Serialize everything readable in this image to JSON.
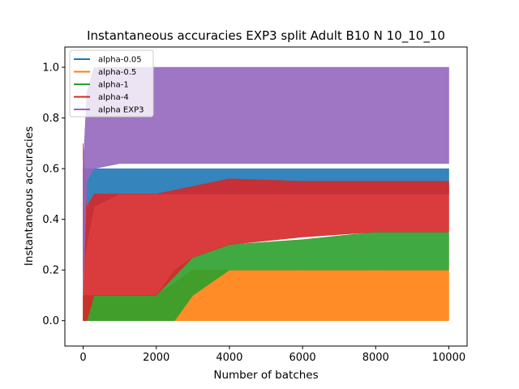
{
  "chart_data": {
    "type": "line",
    "title": "Instantaneous accuracies EXP3 split Adult B10 N 10_10_10",
    "xlabel": "Number of batches",
    "ylabel": "Instantaneous accuracies",
    "xlim": [
      -500,
      10500
    ],
    "ylim": [
      -0.1,
      1.08
    ],
    "xticks": [
      0,
      2000,
      4000,
      6000,
      8000,
      10000
    ],
    "xtick_labels": [
      "0",
      "2000",
      "4000",
      "6000",
      "8000",
      "10000"
    ],
    "yticks": [
      0.0,
      0.2,
      0.4,
      0.6,
      0.8,
      1.0
    ],
    "ytick_labels": [
      "0.0",
      "0.2",
      "0.4",
      "0.6",
      "0.8",
      "1.0"
    ],
    "grid": false,
    "legend_position": "top-left",
    "series": [
      {
        "name": "alpha-0.05",
        "color": "#1f77b4",
        "x": [
          0,
          100,
          300,
          1000,
          2000,
          3000,
          4000,
          6000,
          8000,
          10000
        ],
        "lower": [
          0.2,
          0.3,
          0.45,
          0.5,
          0.5,
          0.5,
          0.5,
          0.5,
          0.5,
          0.5
        ],
        "upper": [
          0.6,
          0.6,
          0.6,
          0.6,
          0.6,
          0.6,
          0.6,
          0.6,
          0.6,
          0.6
        ]
      },
      {
        "name": "alpha-0.5",
        "color": "#ff7f0e",
        "x": [
          0,
          100,
          300,
          1000,
          2000,
          3000,
          4000,
          6000,
          8000,
          10000
        ],
        "lower": [
          0.0,
          0.0,
          0.0,
          0.0,
          0.0,
          0.0,
          0.0,
          0.0,
          0.0,
          0.0
        ],
        "upper": [
          0.1,
          0.1,
          0.1,
          0.1,
          0.1,
          0.2,
          0.2,
          0.2,
          0.2,
          0.2
        ]
      },
      {
        "name": "alpha-1",
        "color": "#2ca02c",
        "x": [
          0,
          100,
          300,
          1000,
          2000,
          2500,
          3000,
          4000,
          6000,
          8000,
          10000
        ],
        "lower": [
          0.0,
          0.0,
          0.0,
          0.0,
          0.0,
          0.0,
          0.1,
          0.2,
          0.2,
          0.2,
          0.2
        ],
        "upper": [
          0.1,
          0.1,
          0.1,
          0.1,
          0.1,
          0.2,
          0.25,
          0.3,
          0.32,
          0.35,
          0.35
        ]
      },
      {
        "name": "alpha-4",
        "color": "#d62728",
        "x": [
          0,
          100,
          300,
          1000,
          2000,
          3000,
          4000,
          6000,
          8000,
          10000
        ],
        "lower": [
          0.0,
          0.0,
          0.1,
          0.1,
          0.1,
          0.25,
          0.3,
          0.33,
          0.35,
          0.35
        ],
        "upper": [
          0.7,
          0.45,
          0.5,
          0.5,
          0.5,
          0.53,
          0.56,
          0.55,
          0.55,
          0.55
        ]
      },
      {
        "name": "alpha EXP3",
        "color": "#9467bd",
        "x": [
          0,
          100,
          300,
          1000,
          2000,
          4000,
          6000,
          8000,
          10000
        ],
        "lower": [
          0.1,
          0.55,
          0.6,
          0.62,
          0.62,
          0.62,
          0.62,
          0.62,
          0.62
        ],
        "upper": [
          0.6,
          0.9,
          1.0,
          1.0,
          1.0,
          1.0,
          1.0,
          1.0,
          1.0
        ]
      }
    ]
  }
}
